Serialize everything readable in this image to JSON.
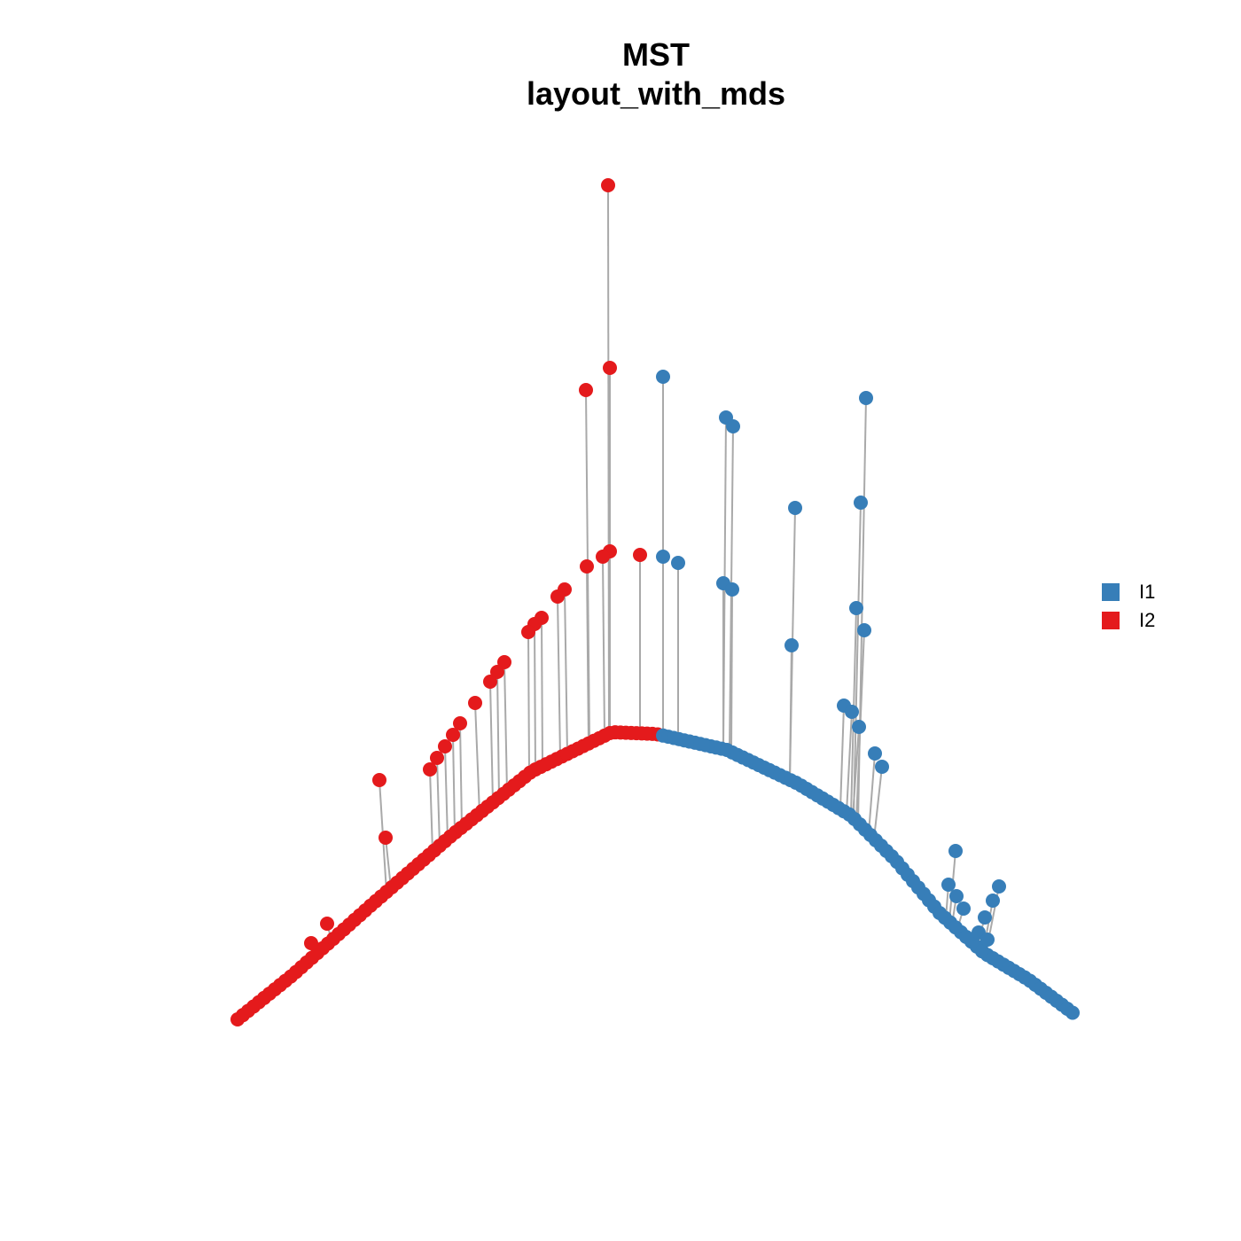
{
  "title": [
    "MST",
    "layout_with_mds"
  ],
  "legend": [
    {
      "label": "I1",
      "color": "#377EB8"
    },
    {
      "label": "I2",
      "color": "#E41A1C"
    }
  ],
  "colors": {
    "edge": "#A9A9A9"
  },
  "graph": {
    "layout": "layout_with_mds",
    "tree": "MST",
    "node_color_groups": [
      "I1",
      "I2"
    ]
  }
}
